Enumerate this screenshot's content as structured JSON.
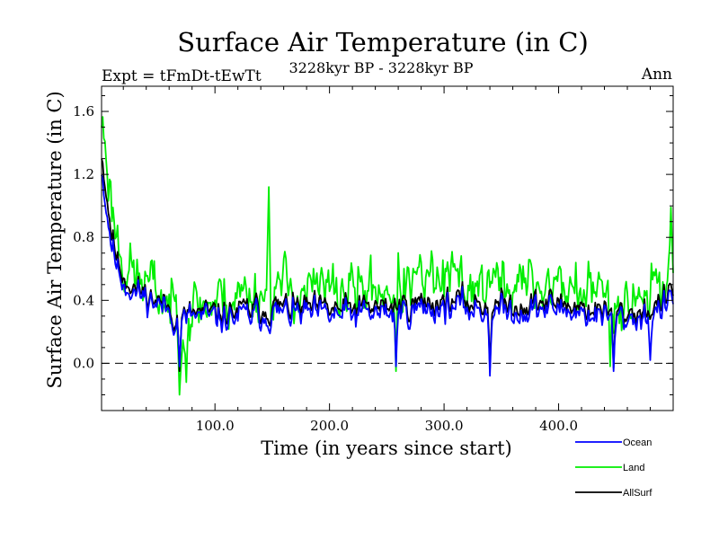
{
  "header": {
    "title": "Surface Air Temperature (in C)",
    "experiment": "Expt = tFmDt-tEwTt",
    "period": "3228kyr BP - 3228kyr BP",
    "season": "Ann"
  },
  "chart_data": {
    "type": "line",
    "title": "Surface Air Temperature (in C)",
    "xlabel": "Time (in years since start)",
    "ylabel": "Surface Air Temperature (in C)",
    "xlim": [
      1,
      500
    ],
    "ylim": [
      -0.3,
      1.76
    ],
    "x_ticks": [
      100,
      200,
      300,
      400
    ],
    "x_tick_labels": [
      "100.0",
      "200.0",
      "300.0",
      "400.0"
    ],
    "y_ticks": [
      0.0,
      0.4,
      0.8,
      1.2,
      1.6
    ],
    "y_tick_labels": [
      "0.0",
      "0.4",
      "0.8",
      "1.2",
      "1.6"
    ],
    "zero_line": {
      "value": 0.0,
      "style": "dashed"
    },
    "legend_position": "bottom-right, below plot",
    "series_order": [
      "Land",
      "AllSurf",
      "Ocean"
    ],
    "series": [
      {
        "name": "Ocean",
        "color": "#0000ff",
        "summary": "annual values, 500 years; starts ~1.25, decays to ~0.5 by year 20, then fluctuates ~0.2-0.5 (mean ~0.33); dips ~-0.08 near yr 340 and ~-0.05 near yr 448",
        "anchors": [
          [
            1,
            1.25
          ],
          [
            5,
            1.0
          ],
          [
            10,
            0.75
          ],
          [
            15,
            0.6
          ],
          [
            20,
            0.52
          ],
          [
            30,
            0.45
          ],
          [
            45,
            0.4
          ],
          [
            60,
            0.33
          ],
          [
            70,
            0.25
          ],
          [
            80,
            0.3
          ],
          [
            100,
            0.28
          ],
          [
            130,
            0.3
          ],
          [
            160,
            0.32
          ],
          [
            200,
            0.3
          ],
          [
            250,
            0.32
          ],
          [
            300,
            0.36
          ],
          [
            350,
            0.33
          ],
          [
            400,
            0.35
          ],
          [
            450,
            0.28
          ],
          [
            480,
            0.3
          ],
          [
            500,
            0.4
          ]
        ],
        "events": [
          [
            69,
            -0.02
          ],
          [
            258,
            -0.02
          ],
          [
            340,
            -0.08
          ],
          [
            448,
            -0.05
          ],
          [
            480,
            0.02
          ]
        ]
      },
      {
        "name": "Land",
        "color": "#00ee00",
        "summary": "annual values, 500 years; starts ~1.55, decays to ~0.6 by year 20, then fluctuates widely ~0.0-1.1 (mean ~0.45); min ~-0.2 near yr 69, max ~1.1 near yr 147",
        "anchors": [
          [
            1,
            1.55
          ],
          [
            5,
            1.35
          ],
          [
            10,
            1.0
          ],
          [
            15,
            0.8
          ],
          [
            20,
            0.65
          ],
          [
            30,
            0.55
          ],
          [
            45,
            0.48
          ],
          [
            60,
            0.38
          ],
          [
            70,
            0.3
          ],
          [
            80,
            0.35
          ],
          [
            100,
            0.4
          ],
          [
            130,
            0.45
          ],
          [
            160,
            0.48
          ],
          [
            200,
            0.45
          ],
          [
            250,
            0.48
          ],
          [
            300,
            0.52
          ],
          [
            350,
            0.5
          ],
          [
            400,
            0.5
          ],
          [
            450,
            0.42
          ],
          [
            480,
            0.45
          ],
          [
            500,
            0.6
          ]
        ],
        "events": [
          [
            69,
            -0.2
          ],
          [
            75,
            -0.12
          ],
          [
            147,
            1.12
          ],
          [
            258,
            -0.05
          ],
          [
            445,
            -0.02
          ],
          [
            498,
            0.99
          ]
        ]
      },
      {
        "name": "AllSurf",
        "color": "#000000",
        "summary": "annual values, 500 years; starts ~1.35, decays to ~0.55 by year 20, then fluctuates ~0.2-0.65 (mean ~0.36)",
        "anchors": [
          [
            1,
            1.35
          ],
          [
            5,
            1.1
          ],
          [
            10,
            0.82
          ],
          [
            15,
            0.65
          ],
          [
            20,
            0.56
          ],
          [
            30,
            0.48
          ],
          [
            45,
            0.42
          ],
          [
            60,
            0.35
          ],
          [
            70,
            0.27
          ],
          [
            80,
            0.32
          ],
          [
            100,
            0.31
          ],
          [
            130,
            0.34
          ],
          [
            160,
            0.36
          ],
          [
            200,
            0.34
          ],
          [
            250,
            0.36
          ],
          [
            300,
            0.4
          ],
          [
            350,
            0.37
          ],
          [
            400,
            0.39
          ],
          [
            450,
            0.31
          ],
          [
            480,
            0.34
          ],
          [
            500,
            0.45
          ]
        ],
        "events": [
          [
            69,
            -0.05
          ],
          [
            340,
            -0.04
          ],
          [
            448,
            -0.03
          ]
        ]
      }
    ]
  }
}
